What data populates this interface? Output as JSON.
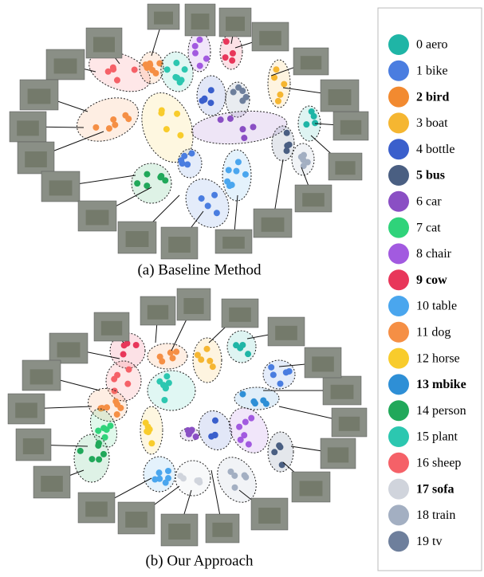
{
  "figure": {
    "panels": [
      {
        "caption": "(a) Baseline Method"
      },
      {
        "caption": "(b) Our Approach"
      }
    ],
    "legend": [
      {
        "label": "0 aero",
        "color": "#1fb5a6",
        "bold": false
      },
      {
        "label": "1 bike",
        "color": "#4a7de0",
        "bold": false
      },
      {
        "label": "2 bird",
        "color": "#f28a30",
        "bold": true
      },
      {
        "label": "3 boat",
        "color": "#f5b631",
        "bold": false
      },
      {
        "label": "4 bottle",
        "color": "#3a5fcc",
        "bold": false
      },
      {
        "label": "5 bus",
        "color": "#4a5f82",
        "bold": true
      },
      {
        "label": "6 car",
        "color": "#8a4fc4",
        "bold": false
      },
      {
        "label": "7 cat",
        "color": "#2fd37a",
        "bold": false
      },
      {
        "label": "8 chair",
        "color": "#a25ae0",
        "bold": false
      },
      {
        "label": "9 cow",
        "color": "#e8365a",
        "bold": true
      },
      {
        "label": "10 table",
        "color": "#4aa6ee",
        "bold": false
      },
      {
        "label": "11 dog",
        "color": "#f58f45",
        "bold": false
      },
      {
        "label": "12 horse",
        "color": "#f8cc2c",
        "bold": false
      },
      {
        "label": "13 mbike",
        "color": "#2e8fd6",
        "bold": true
      },
      {
        "label": "14 person",
        "color": "#21a85a",
        "bold": false
      },
      {
        "label": "15 plant",
        "color": "#2cc7b0",
        "bold": false
      },
      {
        "label": "16 sheep",
        "color": "#f56168",
        "bold": false
      },
      {
        "label": "17 sofa",
        "color": "#d0d4dc",
        "bold": true
      },
      {
        "label": "18 train",
        "color": "#a3afc2",
        "bold": false
      },
      {
        "label": "19 tv",
        "color": "#6e7f9c",
        "bold": false
      }
    ]
  }
}
